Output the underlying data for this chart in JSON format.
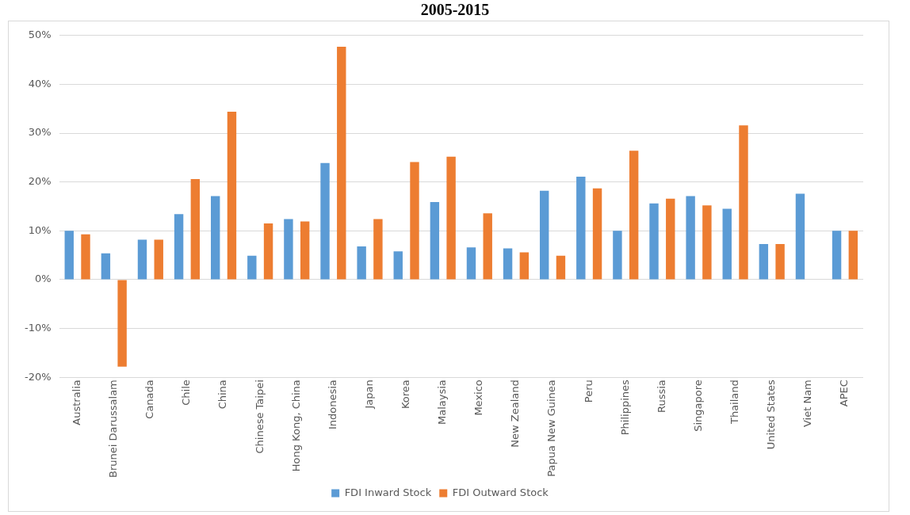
{
  "chart_data": {
    "type": "bar",
    "title": "2005-2015",
    "categories": [
      "Australia",
      "Brunei Darussalam",
      "Canada",
      "Chile",
      "China",
      "Chinese Taipei",
      "Hong Kong, China",
      "Indonesia",
      "Japan",
      "Korea",
      "Malaysia",
      "Mexico",
      "New Zealand",
      "Papua New Guinea",
      "Peru",
      "Philippines",
      "Russia",
      "Singapore",
      "Thailand",
      "United States",
      "Viet Nam",
      "APEC"
    ],
    "series": [
      {
        "name": "FDI Inward Stock",
        "color": "#5b9bd5",
        "values": [
          10.0,
          5.4,
          8.2,
          13.4,
          17.1,
          4.9,
          12.4,
          23.9,
          6.8,
          5.8,
          15.9,
          6.6,
          6.4,
          18.2,
          21.1,
          10.0,
          15.6,
          17.1,
          14.5,
          7.3,
          17.6,
          10.0
        ]
      },
      {
        "name": "FDI Outward Stock",
        "color": "#ed7d31",
        "values": [
          9.3,
          -17.8,
          8.2,
          20.6,
          34.4,
          11.5,
          11.9,
          47.7,
          12.4,
          24.1,
          25.2,
          13.6,
          5.6,
          4.9,
          18.7,
          26.4,
          16.6,
          15.2,
          31.6,
          7.3,
          null,
          10.0
        ]
      }
    ],
    "ylim": [
      -20,
      50
    ],
    "yticks": [
      {
        "value": -20,
        "label": "-20%"
      },
      {
        "value": -10,
        "label": "-10%"
      },
      {
        "value": 0,
        "label": "0%"
      },
      {
        "value": 10,
        "label": "10%"
      },
      {
        "value": 20,
        "label": "20%"
      },
      {
        "value": 30,
        "label": "30%"
      },
      {
        "value": 40,
        "label": "40%"
      },
      {
        "value": 50,
        "label": "50%"
      }
    ],
    "grid": "y",
    "legend": "bottom"
  }
}
